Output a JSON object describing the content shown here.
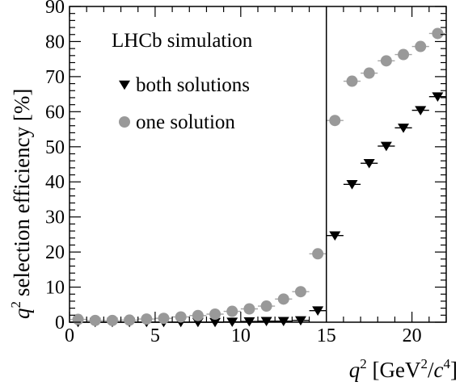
{
  "chart_data": {
    "type": "scatter",
    "annotation": "LHCb simulation",
    "ylabel_main": "selection efficiency [%]",
    "ylabel_q": "q",
    "ylabel_sup": "2",
    "xlabel_q": "q",
    "xlabel_sup": "2",
    "xlabel_unit_open": " [GeV",
    "xlabel_unit_sup1": "2",
    "xlabel_unit_mid": "/",
    "xlabel_unit_c": "c",
    "xlabel_unit_sup2": "4",
    "xlabel_unit_close": "]",
    "xlim": [
      0,
      22
    ],
    "ylim": [
      0,
      90
    ],
    "x_ticks": [
      0,
      5,
      10,
      15,
      20
    ],
    "y_ticks": [
      0,
      10,
      20,
      30,
      40,
      50,
      60,
      70,
      80,
      90
    ],
    "vline_x": 15,
    "legend_position": "top-left",
    "series": [
      {
        "name": "both solutions",
        "marker": "triangle-down",
        "color": "#000000",
        "errbar_color": "#000000",
        "x": [
          0.5,
          1.5,
          2.5,
          3.5,
          4.5,
          5.5,
          6.5,
          7.5,
          8.5,
          9.5,
          10.5,
          11.5,
          12.5,
          13.5,
          14.5,
          15.5,
          16.5,
          17.5,
          18.5,
          19.5,
          20.5,
          21.5
        ],
        "y": [
          0.0,
          0.0,
          0.0,
          0.0,
          0.0,
          0.0,
          0.0,
          0.0,
          0.0,
          0.1,
          0.2,
          0.3,
          0.3,
          0.5,
          3.3,
          24.7,
          39.3,
          45.3,
          50.2,
          55.4,
          60.4,
          64.3
        ]
      },
      {
        "name": "one solution",
        "marker": "circle",
        "color": "#999999",
        "errbar_color": "#a6a6a6",
        "x": [
          0.5,
          1.5,
          2.5,
          3.5,
          4.5,
          5.5,
          6.5,
          7.5,
          8.5,
          9.5,
          10.5,
          11.5,
          12.5,
          13.5,
          14.5,
          15.5,
          16.5,
          17.5,
          18.5,
          19.5,
          20.5,
          21.5
        ],
        "y": [
          0.8,
          0.5,
          0.5,
          0.6,
          0.9,
          1.1,
          1.5,
          1.9,
          2.3,
          3.1,
          3.8,
          4.6,
          6.6,
          8.7,
          19.5,
          57.5,
          68.7,
          71.0,
          74.5,
          76.3,
          78.6,
          82.3
        ]
      }
    ]
  }
}
